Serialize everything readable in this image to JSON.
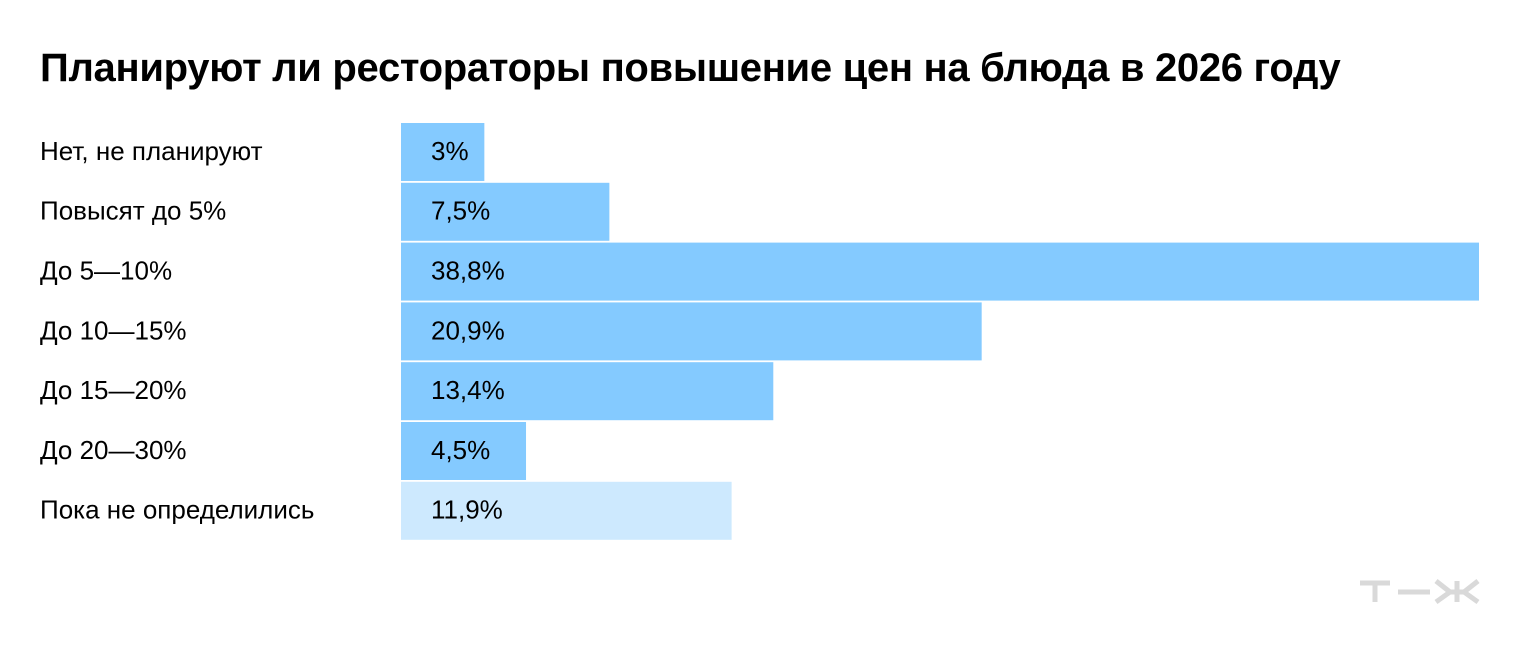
{
  "chart_data": {
    "type": "bar",
    "orientation": "horizontal",
    "title": "Планируют ли рестораторы повышение цен на блюда в 2026 году",
    "categories": [
      "Нет, не планируют",
      "Повысят до 5%",
      "До 5—10%",
      "До 10—15%",
      "До 15—20%",
      "До 20—30%",
      "Пока не определились"
    ],
    "values": [
      3,
      7.5,
      38.8,
      20.9,
      13.4,
      4.5,
      11.9
    ],
    "value_labels": [
      "3%",
      "7,5%",
      "38,8%",
      "20,9%",
      "13,4%",
      "4,5%",
      "11,9%"
    ],
    "unit": "%",
    "xlim": [
      0,
      38.8
    ],
    "grid": false,
    "legend": "none",
    "colors": {
      "bar": "#84CAFF",
      "bar_undecided": "#CDE9FE",
      "text": "#000000"
    }
  },
  "brand": {
    "logo_text": "т—ж",
    "logo_color": "#D9D9D9"
  }
}
